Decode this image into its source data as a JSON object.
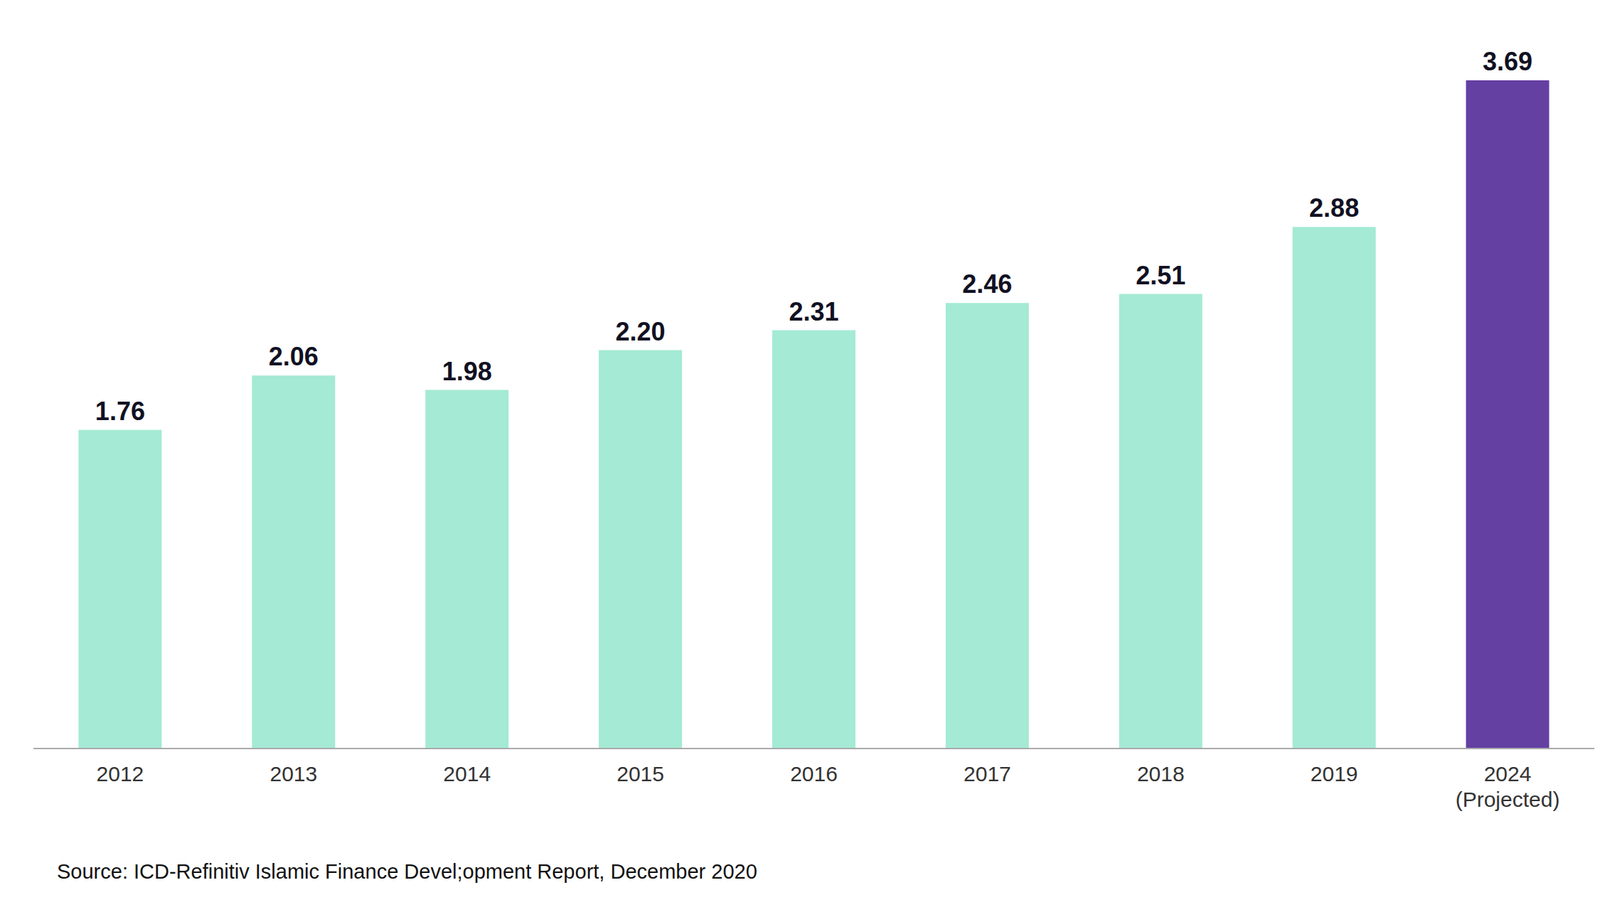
{
  "chart_data": {
    "type": "bar",
    "categories": [
      "2012",
      "2013",
      "2014",
      "2015",
      "2016",
      "2017",
      "2018",
      "2019",
      "2024 (Projected)"
    ],
    "values": [
      1.76,
      2.06,
      1.98,
      2.2,
      2.31,
      2.46,
      2.51,
      2.88,
      3.69
    ],
    "value_labels": [
      "1.76",
      "2.06",
      "1.98",
      "2.20",
      "2.31",
      "2.46",
      "2.51",
      "2.88",
      "3.69"
    ],
    "colors": [
      "#a4ead4",
      "#a4ead4",
      "#a4ead4",
      "#a4ead4",
      "#a4ead4",
      "#a4ead4",
      "#a4ead4",
      "#a4ead4",
      "#6440a3"
    ],
    "ylim": [
      0,
      4
    ],
    "yticks": [
      0,
      0.5,
      1,
      1.5,
      2,
      2.5,
      3,
      3.5,
      4
    ],
    "grid": true,
    "data_labels": true,
    "tick_labels": "x",
    "source": "Source: ICD-Refinitiv Islamic Finance Devel;opment Report, December 2020"
  }
}
